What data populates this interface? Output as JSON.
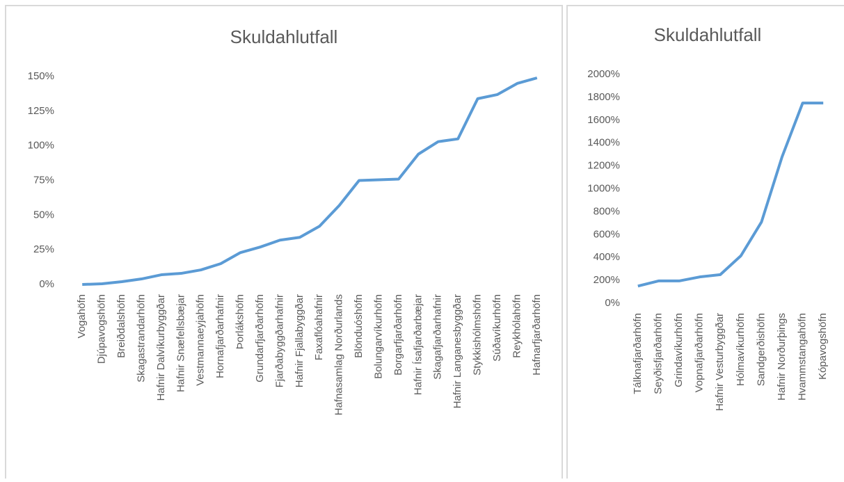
{
  "chart_data": [
    {
      "type": "line",
      "title": "Skuldahlutfall",
      "color": "#5b9bd5",
      "categories": [
        "Vogahöfn",
        "Djúpavogshöfn",
        "Breiðdalshöfn",
        "Skagastrandarhöfn",
        "Hafnir Dalvíkurbyggðar",
        "Hafnir Snæfellsbæjar",
        "Vestmannaeyjahöfn",
        "Hornafjarðarhafnir",
        "Þorlákshöfn",
        "Grundarfjarðarhöfn",
        "Fjarðabyggðarhafnir",
        "Hafnir Fjallabyggðar",
        "Faxaflóahafnir",
        "Hafnasamlag Norðurlands",
        "Blönduóshöfn",
        "Bolungarvíkurhöfn",
        "Borgarfjarðarhöfn",
        "Hafnir Ísafjarðarbæjar",
        "Skagafjarðarhafnir",
        "Hafnir Langanesbyggðar",
        "Stykkishólmshöfn",
        "Súðavíkurhöfn",
        "Reykhólahöfn",
        "Hafnarfjarðarhöfn"
      ],
      "values": [
        0,
        0.5,
        2,
        4,
        7,
        8,
        10.5,
        15,
        23,
        27,
        32,
        34,
        42,
        57,
        75,
        75.5,
        76,
        94,
        103,
        105,
        134,
        137,
        145,
        149
      ],
      "ylim": [
        0,
        150
      ],
      "yticks": [
        {
          "value": 0,
          "label": "0%"
        },
        {
          "value": 25,
          "label": "25%"
        },
        {
          "value": 50,
          "label": "50%"
        },
        {
          "value": 75,
          "label": "75%"
        },
        {
          "value": 100,
          "label": "100%"
        },
        {
          "value": 125,
          "label": "125%"
        },
        {
          "value": 150,
          "label": "150%"
        }
      ]
    },
    {
      "type": "line",
      "title": "Skuldahlutfall",
      "color": "#5b9bd5",
      "categories": [
        "Tálknafjarðarhöfn",
        "Seyðisfjarðarhöfn",
        "Grindavíkurhöfn",
        "Vopnafjarðarhöfn",
        "Hafnir Vesturbyggðar",
        "Hólmavíkurhöfn",
        "Sandgerðishöfn",
        "Hafnir Norðurþings",
        "Hvammstangahöfn",
        "Kópavogshöfn"
      ],
      "values": [
        150,
        195,
        195,
        230,
        250,
        415,
        710,
        1280,
        1750,
        1750
      ],
      "ylim": [
        0,
        2000
      ],
      "yticks": [
        {
          "value": 0,
          "label": "0%"
        },
        {
          "value": 200,
          "label": "200%"
        },
        {
          "value": 400,
          "label": "400%"
        },
        {
          "value": 600,
          "label": "600%"
        },
        {
          "value": 800,
          "label": "800%"
        },
        {
          "value": 1000,
          "label": "1000%"
        },
        {
          "value": 1200,
          "label": "1200%"
        },
        {
          "value": 1400,
          "label": "1400%"
        },
        {
          "value": 1600,
          "label": "1600%"
        },
        {
          "value": 1800,
          "label": "1800%"
        },
        {
          "value": 2000,
          "label": "2000%"
        }
      ]
    }
  ]
}
